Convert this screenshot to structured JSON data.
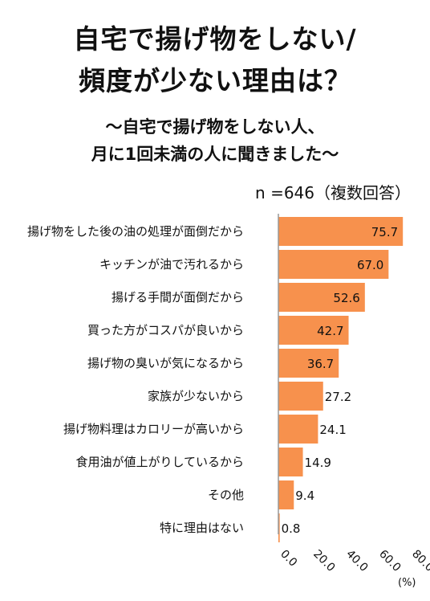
{
  "title_line1": "自宅で揚げ物をしない/",
  "title_line2": "頻度が少ない理由は？",
  "subtitle_line1": "～自宅で揚げ物をしない人、",
  "subtitle_line2": "月に1回未満の人に聞きました～",
  "sample_note": "n =646（複数回答）",
  "colors": {
    "bar": "#F7914D",
    "axis": "#999999"
  },
  "chart_data": {
    "type": "bar",
    "orientation": "horizontal",
    "categories": [
      "揚げ物をした後の油の処理が面倒だから",
      "キッチンが油で汚れるから",
      "揚げる手間が面倒だから",
      "買った方がコスパが良いから",
      "揚げ物の臭いが気になるから",
      "家族が少ないから",
      "揚げ物料理はカロリーが高いから",
      "食用油が値上がりしているから",
      "その他",
      "特に理由はない"
    ],
    "values": [
      75.7,
      67.0,
      52.6,
      42.7,
      36.7,
      27.2,
      24.1,
      14.9,
      9.4,
      0.8
    ],
    "value_labels": [
      "75.7",
      "67.0",
      "52.6",
      "42.7",
      "36.7",
      "27.2",
      "24.1",
      "14.9",
      "9.4",
      "0.8"
    ],
    "xlim": [
      0,
      80
    ],
    "ticks": [
      0,
      20,
      40,
      60,
      80
    ],
    "tick_labels": [
      "0.0",
      "20.0",
      "40.0",
      "60.0",
      "80.0"
    ],
    "unit": "(%)"
  }
}
